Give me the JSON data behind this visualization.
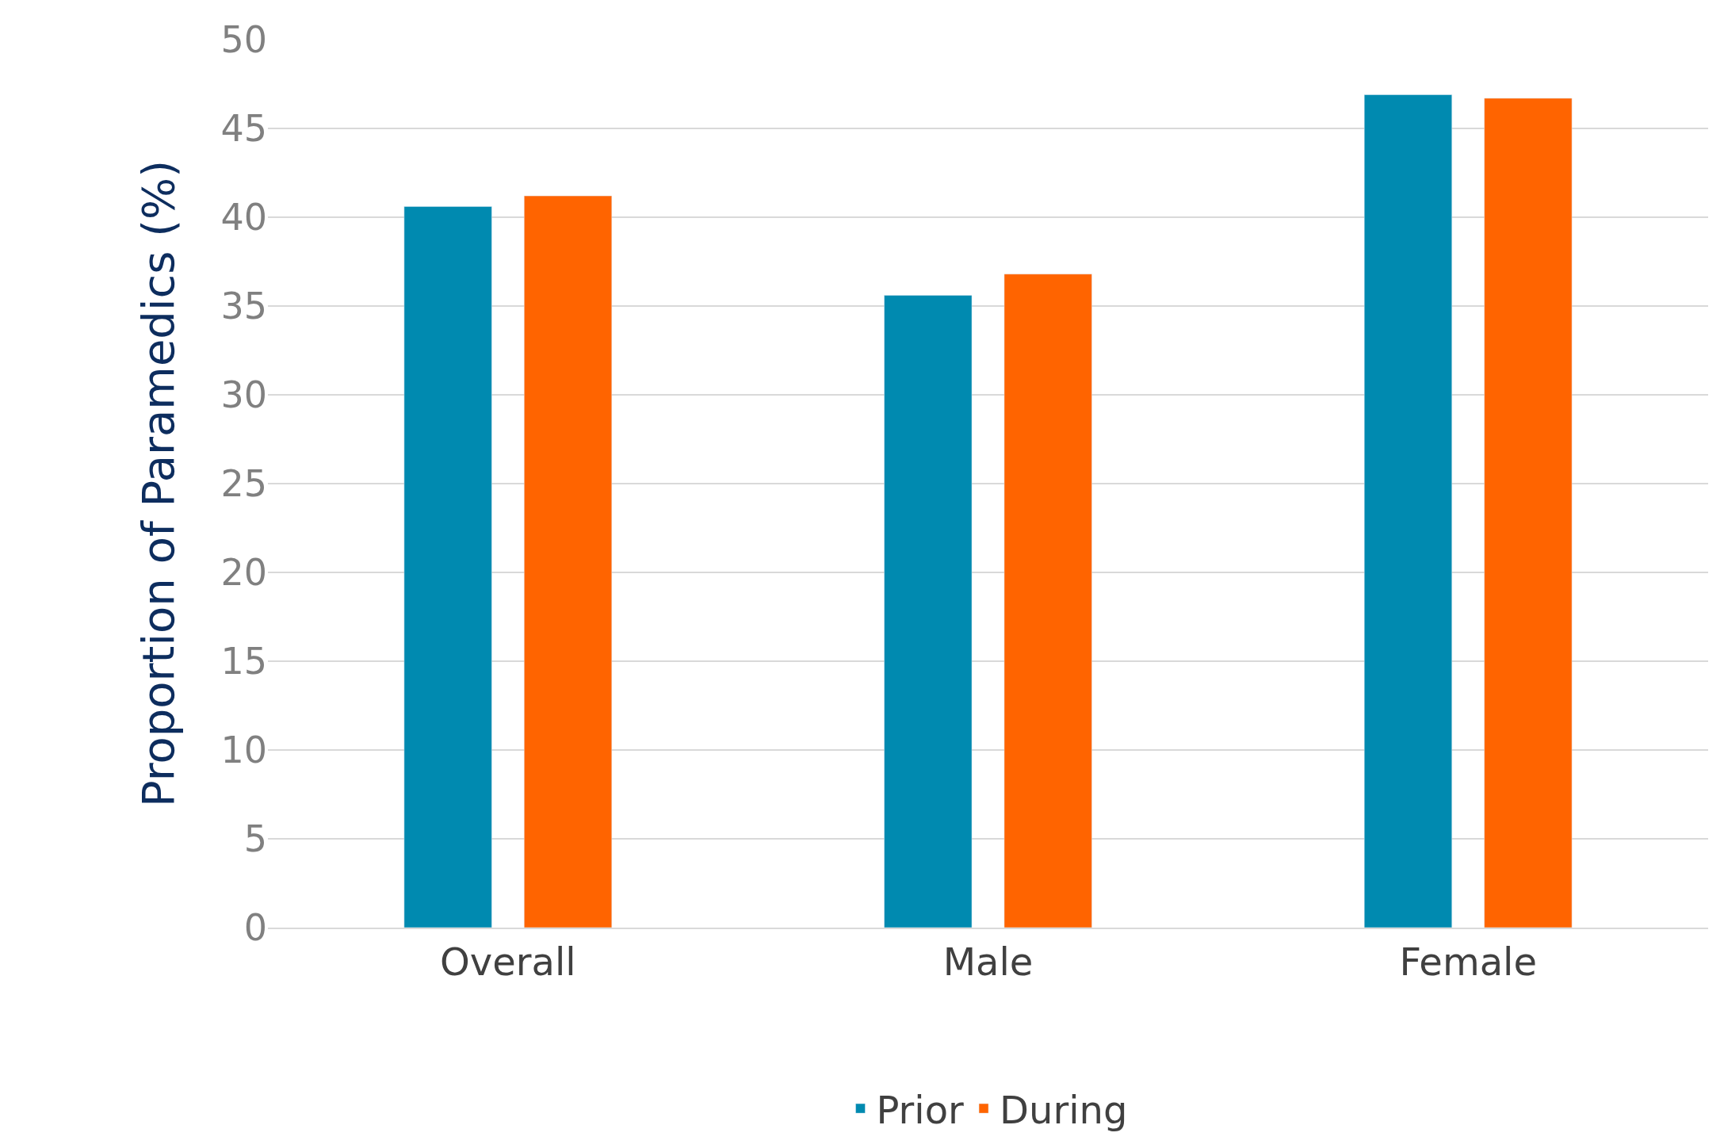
{
  "chart_data": {
    "type": "bar",
    "ylabel": "Proportion of Paramedics (%)",
    "categories": [
      "Overall",
      "Male",
      "Female"
    ],
    "series": [
      {
        "name": "Prior",
        "color": "#008ab0",
        "values": [
          40.6,
          35.6,
          46.9
        ]
      },
      {
        "name": "During",
        "color": "#ff6400",
        "values": [
          41.2,
          36.8,
          46.7
        ]
      }
    ],
    "ylim": [
      0,
      50
    ],
    "yticks": [
      0,
      5,
      10,
      15,
      20,
      25,
      30,
      35,
      40,
      45,
      50
    ],
    "grid": "y",
    "legend": "bottom"
  }
}
